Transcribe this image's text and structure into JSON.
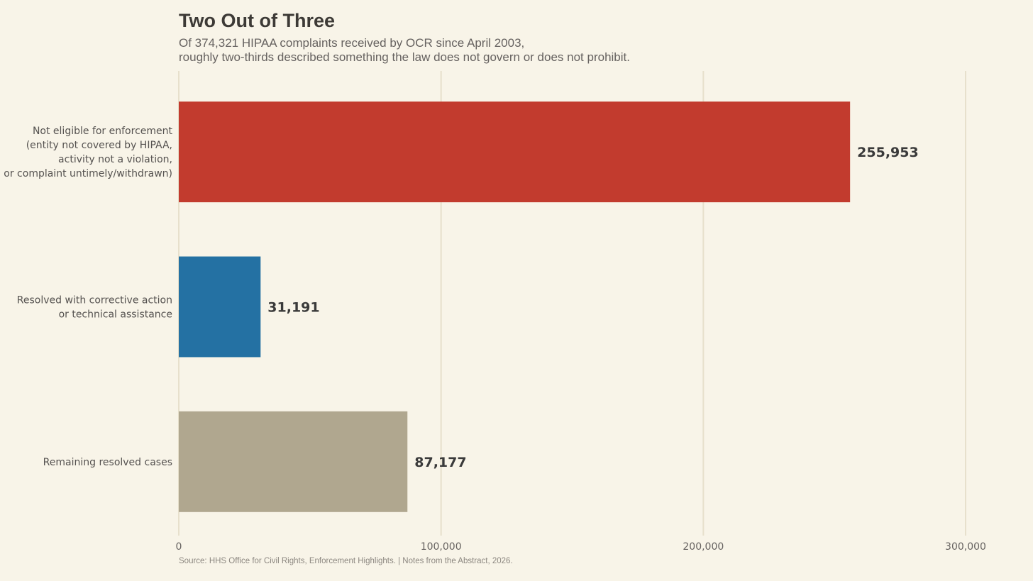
{
  "chart_data": {
    "type": "bar",
    "orientation": "horizontal",
    "title": "Two Out of Three",
    "subtitle": [
      "Of 374,321 HIPAA complaints received by OCR since April 2003,",
      "roughly two-thirds described something the law does not govern or does not prohibit."
    ],
    "categories": [
      [
        "Not eligible for enforcement",
        "(entity not covered by HIPAA,",
        "activity not a violation,",
        "or complaint untimely/withdrawn)"
      ],
      [
        "Resolved with corrective action",
        "or technical assistance"
      ],
      [
        "Remaining resolved cases"
      ]
    ],
    "values": [
      255953,
      31191,
      87177
    ],
    "value_labels": [
      "255,953",
      "31,191",
      "87,177"
    ],
    "colors": [
      "#c23b2e",
      "#2471a3",
      "#b0a78f"
    ],
    "xlim": [
      0,
      300000
    ],
    "xticks": [
      0,
      100000,
      200000,
      300000
    ],
    "xtick_labels": [
      "0",
      "100,000",
      "200,000",
      "300,000"
    ],
    "grid": "vertical",
    "source": "Source: HHS Office for Civil Rights, Enforcement Highlights. | Notes from the Abstract, 2026."
  }
}
